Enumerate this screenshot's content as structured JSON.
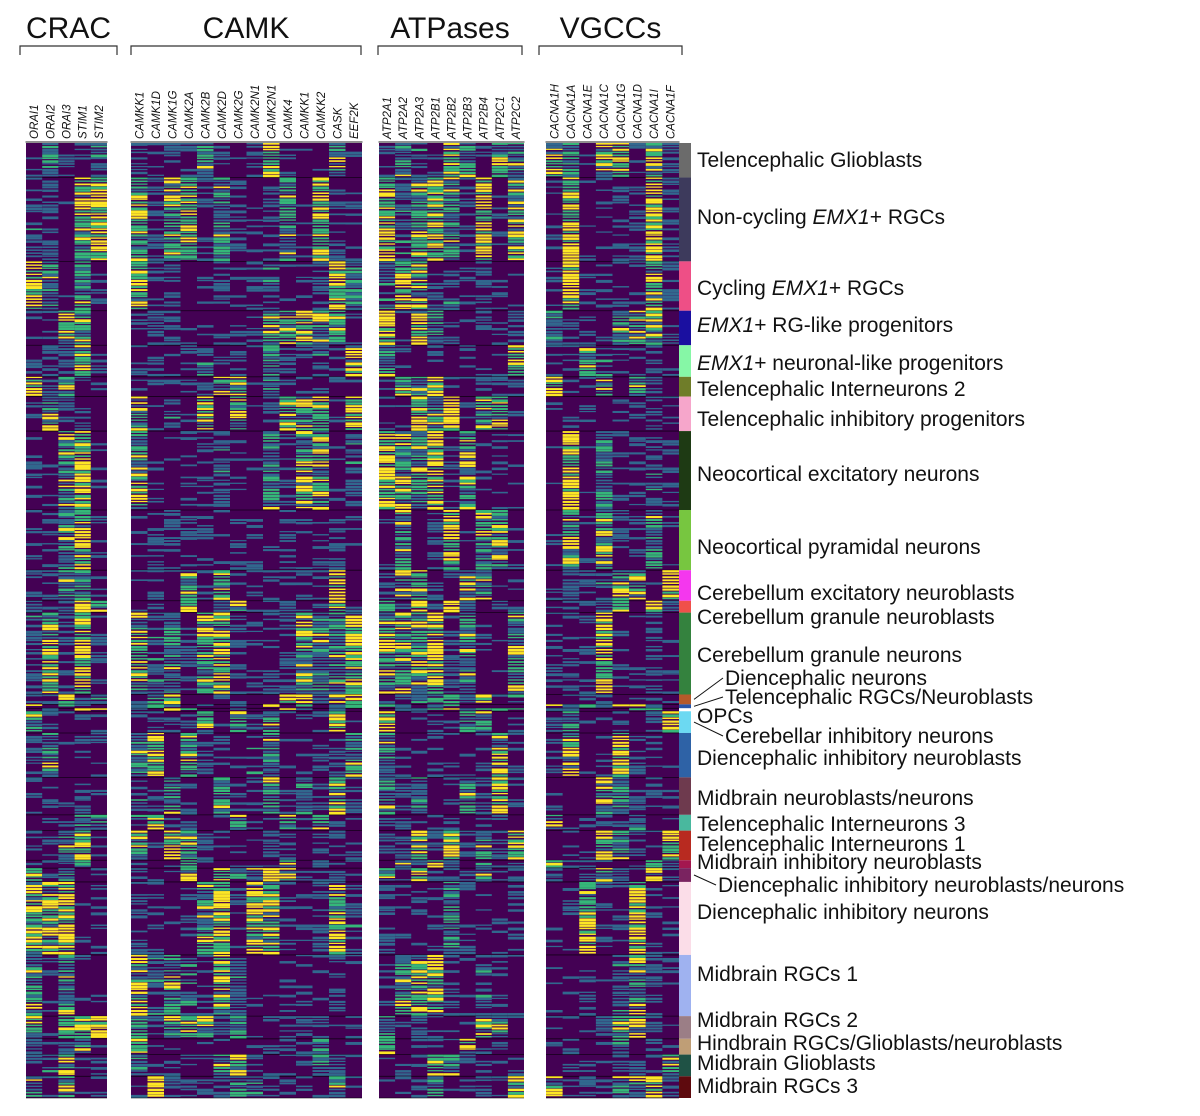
{
  "chart_data": {
    "type": "heatmap",
    "title": "",
    "xlabel": "",
    "ylabel": "",
    "colormap": [
      "#440154",
      "#31688e",
      "#35b779",
      "#fde725"
    ],
    "gene_groups": [
      {
        "name": "CRAC",
        "genes": [
          "ORAI1",
          "ORAI2",
          "ORAI3",
          "STIM1",
          "STIM2"
        ]
      },
      {
        "name": "CAMK",
        "genes": [
          "CAMKK1",
          "CAMK1D",
          "CAMK1G",
          "CAMK2A",
          "CAMK2B",
          "CAMK2D",
          "CAMK2G",
          "CAMK2N1",
          "CAMK2N1",
          "CAMK4",
          "CAMKK1",
          "CAMKK2",
          "CASK",
          "EEF2K"
        ]
      },
      {
        "name": "ATPases",
        "genes": [
          "ATP2A1",
          "ATP2A2",
          "ATP2A3",
          "ATP2B1",
          "ATP2B2",
          "ATP2B3",
          "ATP2B4",
          "ATP2C1",
          "ATP2C2"
        ]
      },
      {
        "name": "VGCCs",
        "genes": [
          "CACNA1H",
          "CACNA1A",
          "CACNA1E",
          "CACNA1C",
          "CACNA1G",
          "CACNA1D",
          "CACNA1I",
          "CACNA1F"
        ]
      }
    ],
    "clusters": [
      {
        "parts": [
          {
            "t": "Telencephalic Glioblasts",
            "i": false
          }
        ],
        "color": "#6b6b6b",
        "size": 3.5
      },
      {
        "parts": [
          {
            "t": "Non-cycling ",
            "i": false
          },
          {
            "t": "EMX1",
            "i": true
          },
          {
            "t": "+ RGCs",
            "i": false
          }
        ],
        "color": "#3d3a5c",
        "size": 8.5
      },
      {
        "parts": [
          {
            "t": "Cycling ",
            "i": false
          },
          {
            "t": "EMX1",
            "i": true
          },
          {
            "t": "+ RGCs",
            "i": false
          }
        ],
        "color": "#ee4f86",
        "size": 5
      },
      {
        "parts": [
          {
            "t": "EMX1",
            "i": true
          },
          {
            "t": "+ RG-like progenitors",
            "i": false
          }
        ],
        "color": "#1a0fa0",
        "size": 3.5
      },
      {
        "parts": [
          {
            "t": "EMX1",
            "i": true
          },
          {
            "t": "+ neuronal-like progenitors",
            "i": false
          }
        ],
        "color": "#86f7a6",
        "size": 3.2
      },
      {
        "parts": [
          {
            "t": "Telencephalic Interneurons 2",
            "i": false
          }
        ],
        "color": "#6f7d29",
        "size": 2
      },
      {
        "parts": [
          {
            "t": "Telencephalic inhibitory progenitors",
            "i": false
          }
        ],
        "color": "#f6a6cb",
        "size": 3.5
      },
      {
        "parts": [
          {
            "t": "Neocortical excitatory neurons",
            "i": false
          }
        ],
        "color": "#1e3a14",
        "size": 8
      },
      {
        "parts": [
          {
            "t": "Neocortical pyramidal neurons",
            "i": false
          }
        ],
        "color": "#77c640",
        "size": 6.1
      },
      {
        "parts": [
          {
            "t": "Cerebellum excitatory neuroblasts",
            "i": false
          }
        ],
        "color": "#f437ee",
        "size": 3.1
      },
      {
        "parts": [
          {
            "t": "Cerebellum granule neuroblasts",
            "i": false
          }
        ],
        "color": "#f0504a",
        "size": 1.2
      },
      {
        "parts": [
          {
            "t": "Cerebellum granule neurons",
            "i": false
          }
        ],
        "color": "#34823e",
        "size": 8.3
      },
      {
        "parts": [
          {
            "t": "Diencephalic neurons",
            "i": false
          }
        ],
        "color": "#b55a2a",
        "size": 1
      },
      {
        "parts": [
          {
            "t": "Telencephalic RGCs/Neuroblasts",
            "i": false
          }
        ],
        "color": "#2855a8",
        "size": 0.4
      },
      {
        "parts": [
          {
            "t": "OPCs",
            "i": false
          }
        ],
        "color": "#ffffff",
        "size": 0.3
      },
      {
        "parts": [
          {
            "t": "Cerebellar inhibitory neurons",
            "i": false
          }
        ],
        "color": "#6cd9f2",
        "size": 2.2
      },
      {
        "parts": [
          {
            "t": "Diencephalic inhibitory neuroblasts",
            "i": false
          }
        ],
        "color": "#2e62a6",
        "size": 4.5
      },
      {
        "parts": [
          {
            "t": "Midbrain neuroblasts/neurons",
            "i": false
          }
        ],
        "color": "#6e3a4e",
        "size": 3.8
      },
      {
        "parts": [
          {
            "t": "Telencephalic Interneurons 3",
            "i": false
          }
        ],
        "color": "#49b89e",
        "size": 1.6
      },
      {
        "parts": [
          {
            "t": "Telencephalic Interneurons 1",
            "i": false
          }
        ],
        "color": "#b82a20",
        "size": 3
      },
      {
        "parts": [
          {
            "t": "Midbrain inhibitory neuroblasts",
            "i": false
          }
        ],
        "color": "#a3174f",
        "size": 0.8
      },
      {
        "parts": [
          {
            "t": "Diencephalic inhibitory neuroblasts/neurons",
            "i": false
          }
        ],
        "color": "#7a2360",
        "size": 1.4
      },
      {
        "parts": [
          {
            "t": "Diencephalic inhibitory neurons",
            "i": false
          }
        ],
        "color": "#fbdde8",
        "size": 7.4
      },
      {
        "parts": [
          {
            "t": "Midbrain RGCs 1",
            "i": false
          }
        ],
        "color": "#9fb2f0",
        "size": 6.2
      },
      {
        "parts": [
          {
            "t": "Midbrain RGCs 2",
            "i": false
          }
        ],
        "color": "#9b7e86",
        "size": 2.3
      },
      {
        "parts": [
          {
            "t": "Hindbrain RGCs/Glioblasts/neuroblasts",
            "i": false
          }
        ],
        "color": "#bf9e76",
        "size": 1.6
      },
      {
        "parts": [
          {
            "t": "Midbrain Glioblasts",
            "i": false
          }
        ],
        "color": "#1f5245",
        "size": 2.2
      },
      {
        "parts": [
          {
            "t": "Midbrain RGCs 3",
            "i": false
          }
        ],
        "color": "#5e0a0e",
        "size": 2.2
      }
    ]
  }
}
